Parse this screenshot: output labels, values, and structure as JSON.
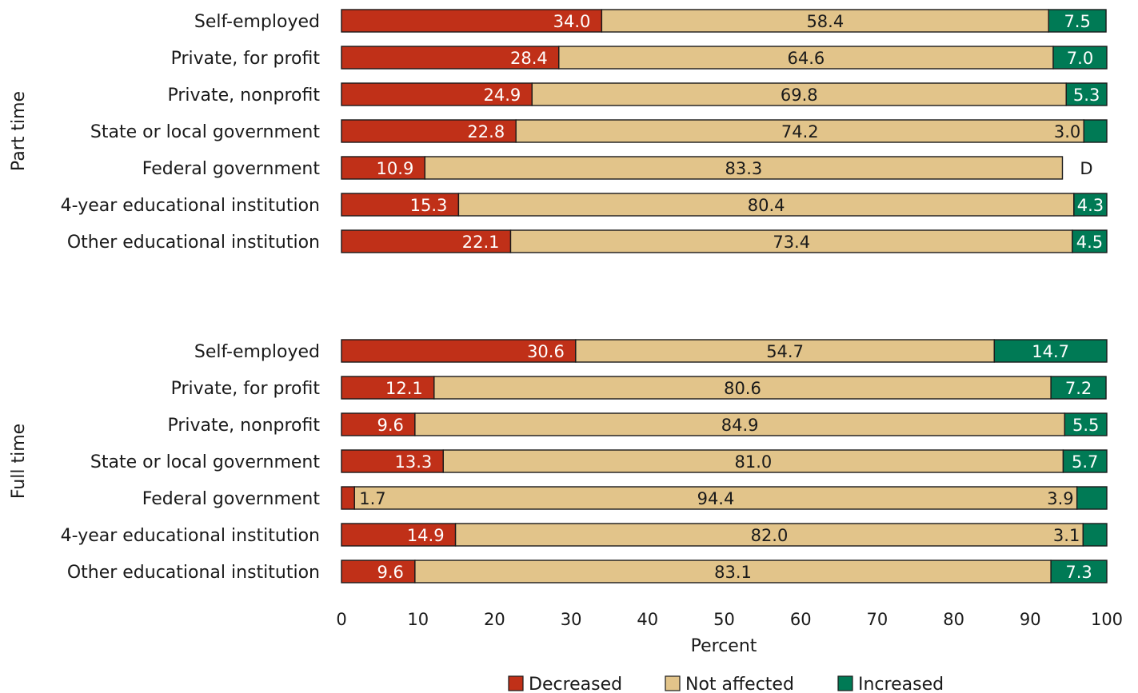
{
  "chart_data": {
    "type": "bar",
    "orientation": "horizontal",
    "stacked": true,
    "xlabel": "Percent",
    "xlim": [
      0,
      100
    ],
    "xticks": [
      "0",
      "10",
      "20",
      "30",
      "40",
      "50",
      "60",
      "70",
      "80",
      "90",
      "100"
    ],
    "legend": {
      "placement": "bottom",
      "entries": [
        {
          "label": "Decreased",
          "color": "#c03018"
        },
        {
          "label": "Not affected",
          "color": "#e2c48a"
        },
        {
          "label": "Increased",
          "color": "#007a55"
        }
      ]
    },
    "groups": [
      {
        "name": "Part time",
        "categories": [
          "Self-employed",
          "Private, for profit",
          "Private, nonprofit",
          "State or local government",
          "Federal government",
          "4-year educational institution",
          "Other educational institution"
        ],
        "series": [
          {
            "name": "Decreased",
            "values": [
              34.0,
              28.4,
              24.9,
              22.8,
              10.9,
              15.3,
              22.1
            ],
            "labels": [
              "34.0",
              "28.4",
              "24.9",
              "22.8",
              "10.9",
              "15.3",
              "22.1"
            ]
          },
          {
            "name": "Not affected",
            "values": [
              58.4,
              64.6,
              69.8,
              74.2,
              83.3,
              80.4,
              73.4
            ],
            "labels": [
              "58.4",
              "64.6",
              "69.8",
              "74.2",
              "83.3",
              "80.4",
              "73.4"
            ]
          },
          {
            "name": "Increased",
            "values": [
              7.5,
              7.0,
              5.3,
              3.0,
              null,
              4.3,
              4.5
            ],
            "labels": [
              "7.5",
              "7.0",
              "5.3",
              "3.0",
              "D",
              "4.3",
              "4.5"
            ]
          }
        ]
      },
      {
        "name": "Full time",
        "categories": [
          "Self-employed",
          "Private, for profit",
          "Private, nonprofit",
          "State or local government",
          "Federal government",
          "4-year educational institution",
          "Other educational institution"
        ],
        "series": [
          {
            "name": "Decreased",
            "values": [
              30.6,
              12.1,
              9.6,
              13.3,
              1.7,
              14.9,
              9.6
            ],
            "labels": [
              "30.6",
              "12.1",
              "9.6",
              "13.3",
              "1.7",
              "14.9",
              "9.6"
            ]
          },
          {
            "name": "Not affected",
            "values": [
              54.7,
              80.6,
              84.9,
              81.0,
              94.4,
              82.0,
              83.1
            ],
            "labels": [
              "54.7",
              "80.6",
              "84.9",
              "81.0",
              "94.4",
              "82.0",
              "83.1"
            ]
          },
          {
            "name": "Increased",
            "values": [
              14.7,
              7.2,
              5.5,
              5.7,
              3.9,
              3.1,
              7.3
            ],
            "labels": [
              "14.7",
              "7.2",
              "5.5",
              "5.7",
              "3.9",
              "3.1",
              "7.3"
            ]
          }
        ]
      }
    ]
  }
}
